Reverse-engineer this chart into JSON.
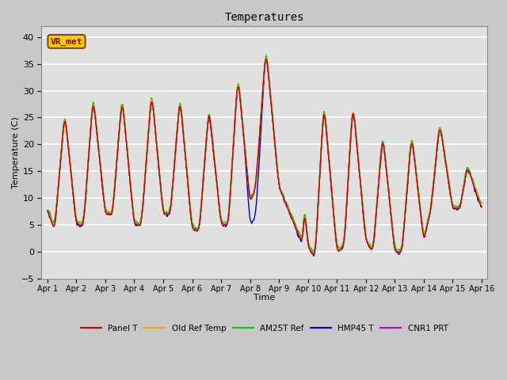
{
  "title": "Temperatures",
  "xlabel": "Time",
  "ylabel": "Temperature (C)",
  "ylim": [
    -5,
    42
  ],
  "yticks": [
    -5,
    0,
    5,
    10,
    15,
    20,
    25,
    30,
    35,
    40
  ],
  "plot_bg_color": "#e8e8e8",
  "fig_bg_color": "#d0d0d0",
  "grid_color": "white",
  "legend_labels": [
    "Panel T",
    "Old Ref Temp",
    "AM25T Ref",
    "HMP45 T",
    "CNR1 PRT"
  ],
  "line_colors": [
    "#cc0000",
    "#ffa500",
    "#00cc00",
    "#0000cc",
    "#cc00cc"
  ],
  "annotation_text": "VR_met",
  "x_tick_labels": [
    "Apr 1",
    "Apr 2",
    "Apr 3",
    "Apr 4",
    "Apr 5",
    "Apr 6",
    "Apr 7",
    "Apr 8",
    "Apr 9",
    "Apr 10",
    "Apr 11",
    "Apr 12",
    "Apr 13",
    "Apr 14",
    "Apr 15",
    "Apr 16"
  ]
}
